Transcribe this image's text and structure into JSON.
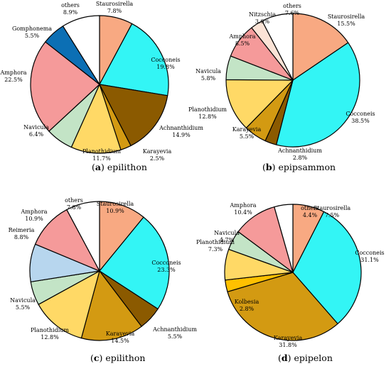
{
  "chart_data": [
    {
      "type": "pie",
      "caption_letter": "a",
      "caption_text": "epilithon",
      "slices": [
        {
          "name": "Staurosirella",
          "pct": "7.8%",
          "value": 7.8,
          "color": "#f8a982"
        },
        {
          "name": "Cocconeis",
          "pct": "19.8%",
          "value": 19.8,
          "color": "#33f5f5"
        },
        {
          "name": "Achnanthidium",
          "pct": "14.9%",
          "value": 14.9,
          "color": "#8b5a00"
        },
        {
          "name": "Karayevia",
          "pct": "2.5%",
          "value": 2.5,
          "color": "#d39a12"
        },
        {
          "name": "Planothidium",
          "pct": "11.7%",
          "value": 11.7,
          "color": "#ffd966"
        },
        {
          "name": "Navicula",
          "pct": "6.4%",
          "value": 6.4,
          "color": "#c3e4c6"
        },
        {
          "name": "Amphora",
          "pct": "22.5%",
          "value": 22.5,
          "color": "#f59a9a"
        },
        {
          "name": "Gomphonema",
          "pct": "5.5%",
          "value": 5.5,
          "color": "#0c6fb4"
        },
        {
          "name": "others",
          "pct": "8.9%",
          "value": 8.9,
          "color": "#ffffff"
        }
      ]
    },
    {
      "type": "pie",
      "caption_letter": "b",
      "caption_text": "epipsammon",
      "slices": [
        {
          "name": "Staurosirella",
          "pct": "15.5%",
          "value": 15.5,
          "color": "#f8a982"
        },
        {
          "name": "Cocconeis",
          "pct": "38.5%",
          "value": 38.5,
          "color": "#33f5f5"
        },
        {
          "name": "Achnanthidium",
          "pct": "2.8%",
          "value": 2.8,
          "color": "#8b5a00"
        },
        {
          "name": "Karayevia",
          "pct": "5.5%",
          "value": 5.5,
          "color": "#d39a12"
        },
        {
          "name": "Planothidium",
          "pct": "12.8%",
          "value": 12.8,
          "color": "#ffd966"
        },
        {
          "name": "Navicula",
          "pct": "5.8%",
          "value": 5.8,
          "color": "#c3e4c6"
        },
        {
          "name": "Amphora",
          "pct": "8.5%",
          "value": 8.5,
          "color": "#f59a9a"
        },
        {
          "name": "Nitzschia",
          "pct": "3.0%",
          "value": 3.0,
          "color": "#fbe3d6"
        },
        {
          "name": "others",
          "pct": "7.6%",
          "value": 7.6,
          "color": "#ffffff"
        }
      ]
    },
    {
      "type": "pie",
      "caption_letter": "c",
      "caption_text": "epilithon",
      "slices": [
        {
          "name": "Staurosirella",
          "pct": "10.9%",
          "value": 10.9,
          "color": "#f8a982"
        },
        {
          "name": "Cocconeis",
          "pct": "23.3%",
          "value": 23.3,
          "color": "#33f5f5"
        },
        {
          "name": "Achnanthidium",
          "pct": "5.5%",
          "value": 5.5,
          "color": "#8b5a00"
        },
        {
          "name": "Karayevia",
          "pct": "14.5%",
          "value": 14.5,
          "color": "#d39a12"
        },
        {
          "name": "Planothidium",
          "pct": "12.8%",
          "value": 12.8,
          "color": "#ffd966"
        },
        {
          "name": "Navicula",
          "pct": "5.5%",
          "value": 5.5,
          "color": "#c3e4c6"
        },
        {
          "name": "Reimeria",
          "pct": "8.8%",
          "value": 8.8,
          "color": "#b7d6ee"
        },
        {
          "name": "Amphora",
          "pct": "10.9%",
          "value": 10.9,
          "color": "#f59a9a"
        },
        {
          "name": "others",
          "pct": "7.8%",
          "value": 7.8,
          "color": "#ffffff"
        }
      ]
    },
    {
      "type": "pie",
      "caption_letter": "d",
      "caption_text": "epipelon",
      "slices": [
        {
          "name": "Staurosirella",
          "pct": "7.5%",
          "value": 7.5,
          "color": "#f8a982"
        },
        {
          "name": "Cocconeis",
          "pct": "31.1%",
          "value": 31.1,
          "color": "#33f5f5"
        },
        {
          "name": "Karayevia",
          "pct": "31.8%",
          "value": 31.8,
          "color": "#d39a12"
        },
        {
          "name": "Kolbesia",
          "pct": "2.8%",
          "value": 2.8,
          "color": "#ffc000"
        },
        {
          "name": "Planothidium",
          "pct": "7.3%",
          "value": 7.3,
          "color": "#ffd966"
        },
        {
          "name": "Navicula",
          "pct": "4.7%",
          "value": 4.7,
          "color": "#c3e4c6"
        },
        {
          "name": "Amphora",
          "pct": "10.4%",
          "value": 10.4,
          "color": "#f59a9a"
        },
        {
          "name": "others",
          "pct": "4.4%",
          "value": 4.4,
          "color": "#ffffff"
        }
      ]
    }
  ]
}
